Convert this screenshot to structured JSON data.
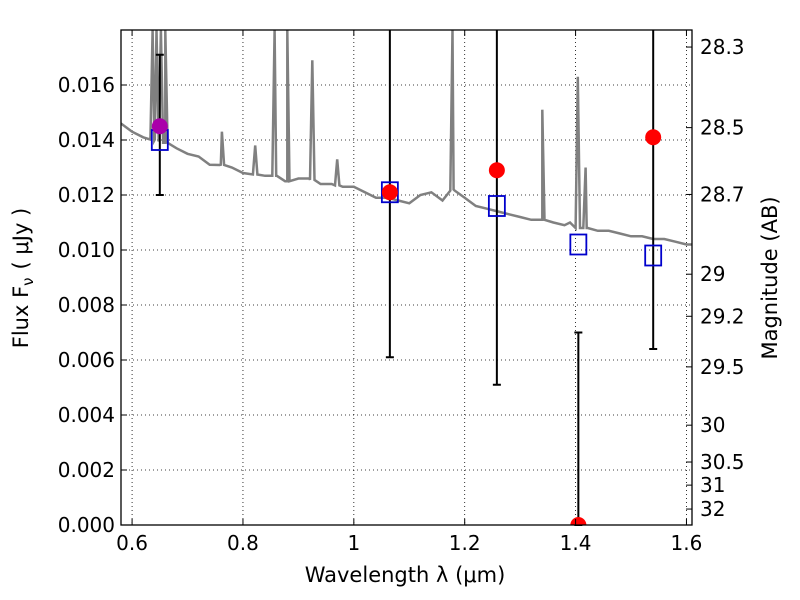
{
  "chart_data": {
    "type": "scatter",
    "xlabel": "Wavelength  λ (μm)",
    "ylabel_left": "Flux  F",
    "ylabel_sub": "ν",
    "ylabel_units": "( μJy )",
    "ylabel_right": "Magnitude (AB)",
    "xlim": [
      0.58,
      1.61
    ],
    "ylim": [
      0.0,
      0.018
    ],
    "grid": true,
    "x_ticks": [
      0.6,
      0.8,
      1.0,
      1.2,
      1.4,
      1.6
    ],
    "x_tick_labels": [
      "0.6",
      "0.8",
      "1",
      "1.2",
      "1.4",
      "1.6"
    ],
    "y_ticks": [
      0.0,
      0.002,
      0.004,
      0.006,
      0.008,
      0.01,
      0.012,
      0.014,
      0.016
    ],
    "y_tick_labels": [
      "0.000",
      "0.002",
      "0.004",
      "0.006",
      "0.008",
      "0.010",
      "0.012",
      "0.014",
      "0.016"
    ],
    "mag_ticks": [
      {
        "label": "28.3",
        "flux": 0.01738
      },
      {
        "label": "28.5",
        "flux": 0.01445
      },
      {
        "label": "28.7",
        "flux": 0.01202
      },
      {
        "label": "29",
        "flux": 0.00912
      },
      {
        "label": "29.2",
        "flux": 0.00759
      },
      {
        "label": "29.5",
        "flux": 0.00575
      },
      {
        "label": "30",
        "flux": 0.00363
      },
      {
        "label": "30.5",
        "flux": 0.00229
      },
      {
        "label": "31",
        "flux": 0.00145
      },
      {
        "label": "32",
        "flux": 0.00058
      }
    ],
    "model_spectrum": {
      "color": "#808080",
      "points": [
        [
          0.58,
          0.0146
        ],
        [
          0.6,
          0.0143
        ],
        [
          0.62,
          0.0141
        ],
        [
          0.64,
          0.014
        ],
        [
          0.66,
          0.0139
        ],
        [
          0.68,
          0.0137
        ],
        [
          0.7,
          0.0135
        ],
        [
          0.72,
          0.0134
        ],
        [
          0.74,
          0.0131
        ],
        [
          0.76,
          0.0131
        ],
        [
          0.78,
          0.013
        ],
        [
          0.8,
          0.0128
        ],
        [
          0.84,
          0.0127
        ],
        [
          0.86,
          0.0127
        ],
        [
          0.88,
          0.0125
        ],
        [
          0.9,
          0.0126
        ],
        [
          0.92,
          0.0126
        ],
        [
          0.94,
          0.0124
        ],
        [
          0.96,
          0.0124
        ],
        [
          0.98,
          0.0123
        ],
        [
          1.0,
          0.0123
        ],
        [
          1.02,
          0.0121
        ],
        [
          1.04,
          0.0119
        ],
        [
          1.06,
          0.0119
        ],
        [
          1.08,
          0.0118
        ],
        [
          1.1,
          0.0117
        ],
        [
          1.12,
          0.012
        ],
        [
          1.14,
          0.0121
        ],
        [
          1.16,
          0.0118
        ],
        [
          1.18,
          0.0122
        ],
        [
          1.2,
          0.0119
        ],
        [
          1.22,
          0.0116
        ],
        [
          1.24,
          0.0115
        ],
        [
          1.26,
          0.0114
        ],
        [
          1.28,
          0.0113
        ],
        [
          1.3,
          0.0112
        ],
        [
          1.32,
          0.0111
        ],
        [
          1.34,
          0.0111
        ],
        [
          1.36,
          0.011
        ],
        [
          1.38,
          0.0109
        ],
        [
          1.39,
          0.011
        ],
        [
          1.4,
          0.0108
        ],
        [
          1.42,
          0.0108
        ],
        [
          1.44,
          0.0107
        ],
        [
          1.46,
          0.0107
        ],
        [
          1.48,
          0.0106
        ],
        [
          1.5,
          0.0105
        ],
        [
          1.52,
          0.0105
        ],
        [
          1.54,
          0.0104
        ],
        [
          1.56,
          0.0104
        ],
        [
          1.58,
          0.0103
        ],
        [
          1.6,
          0.0102
        ],
        [
          1.61,
          0.0102
        ]
      ],
      "emission_lines": [
        {
          "x": 0.637,
          "peak": 0.018
        },
        {
          "x": 0.644,
          "peak": 0.018
        },
        {
          "x": 0.652,
          "peak": 0.018
        },
        {
          "x": 0.66,
          "peak": 0.018
        },
        {
          "x": 0.762,
          "peak": 0.0143
        },
        {
          "x": 0.822,
          "peak": 0.0138
        },
        {
          "x": 0.857,
          "peak": 0.018
        },
        {
          "x": 0.88,
          "peak": 0.018
        },
        {
          "x": 0.925,
          "peak": 0.0169
        },
        {
          "x": 0.97,
          "peak": 0.0133
        },
        {
          "x": 1.178,
          "peak": 0.018
        },
        {
          "x": 1.34,
          "peak": 0.0151
        },
        {
          "x": 1.404,
          "peak": 0.0163
        },
        {
          "x": 1.418,
          "peak": 0.013
        }
      ]
    },
    "model_photometry": {
      "color": "#0000cc",
      "x": [
        0.65,
        1.065,
        1.258,
        1.405,
        1.54
      ],
      "y": [
        0.014,
        0.0121,
        0.0116,
        0.0102,
        0.0098
      ]
    },
    "observed": {
      "x": [
        0.65,
        1.065,
        1.258,
        1.405,
        1.54
      ],
      "y": [
        0.0145,
        0.0121,
        0.0129,
        0.0,
        0.0141
      ],
      "colors": [
        "#aa00aa",
        "#ff0000",
        "#ff0000",
        "#ff0000",
        "#ff0000"
      ],
      "err_low": [
        0.012,
        0.0061,
        0.0051,
        0.0,
        0.0064
      ],
      "err_high": [
        0.0171,
        0.018,
        0.018,
        0.007,
        0.018
      ]
    }
  }
}
